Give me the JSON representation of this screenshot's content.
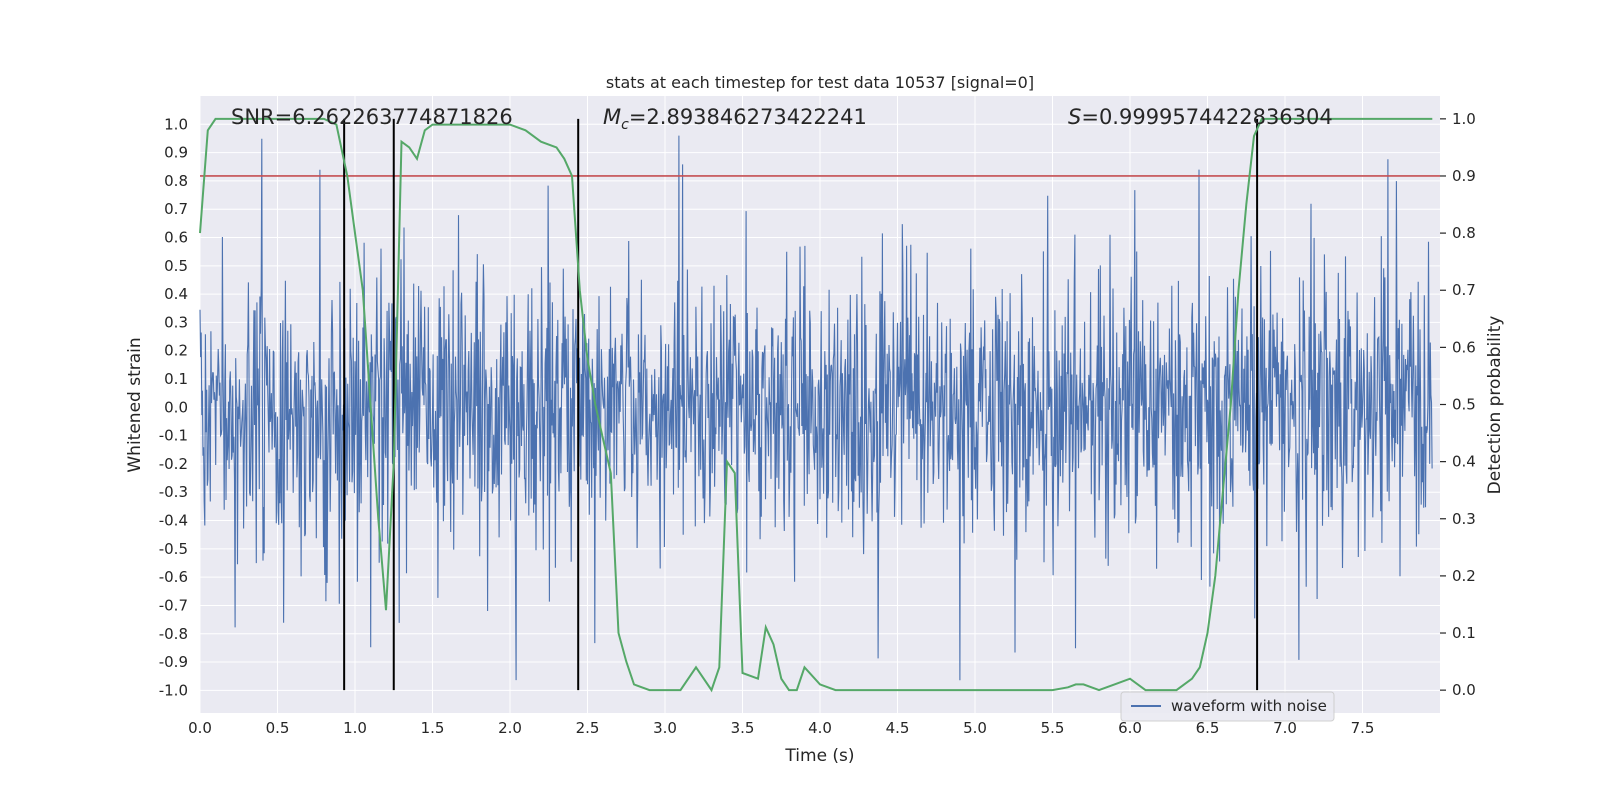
{
  "chart_data": {
    "type": "line",
    "title": "stats at each timestep for test data 10537 [signal=0]",
    "xlabel": "Time (s)",
    "ylabel": "Whitened strain",
    "y2label": "Detection probability",
    "xlim": [
      0,
      8
    ],
    "ylim": [
      -1.08,
      1.1
    ],
    "y2lim": [
      -0.04,
      1.04
    ],
    "xticks": [
      "0.0",
      "0.5",
      "1.0",
      "1.5",
      "2.0",
      "2.5",
      "3.0",
      "3.5",
      "4.0",
      "4.5",
      "5.0",
      "5.5",
      "6.0",
      "6.5",
      "7.0",
      "7.5"
    ],
    "yticks": [
      "-1.0",
      "-0.9",
      "-0.8",
      "-0.7",
      "-0.6",
      "-0.5",
      "-0.4",
      "-0.3",
      "-0.2",
      "-0.1",
      "0.0",
      "0.1",
      "0.2",
      "0.3",
      "0.4",
      "0.5",
      "0.6",
      "0.7",
      "0.8",
      "0.9",
      "1.0"
    ],
    "y2ticks": [
      "0.0",
      "0.1",
      "0.2",
      "0.3",
      "0.4",
      "0.5",
      "0.6",
      "0.7",
      "0.8",
      "0.9",
      "1.0"
    ],
    "annotations": {
      "snr": "SNR=6.262263774871826",
      "mc_sym": "M",
      "mc_sub": "c",
      "mc_val": "=2.893846273422241",
      "s_sym": "S",
      "s_val": "=0.9999574422836304"
    },
    "legend": {
      "label": "waveform with noise",
      "location": "lower-right"
    },
    "threshold": 0.9,
    "vlines": [
      0.93,
      1.25,
      2.44,
      6.82
    ],
    "noise": {
      "name": "waveform with noise",
      "sample_rate": 256,
      "amplitude": 0.42,
      "seed": 10537
    },
    "detection_probability": {
      "x": [
        0.0,
        0.05,
        0.1,
        0.2,
        0.3,
        0.4,
        0.5,
        0.6,
        0.7,
        0.8,
        0.88,
        0.95,
        1.0,
        1.05,
        1.1,
        1.15,
        1.2,
        1.25,
        1.3,
        1.35,
        1.4,
        1.45,
        1.5,
        1.6,
        1.7,
        1.8,
        1.9,
        2.0,
        2.1,
        2.2,
        2.3,
        2.35,
        2.4,
        2.45,
        2.5,
        2.55,
        2.6,
        2.65,
        2.7,
        2.75,
        2.8,
        2.85,
        2.9,
        3.0,
        3.1,
        3.2,
        3.3,
        3.35,
        3.4,
        3.45,
        3.5,
        3.6,
        3.65,
        3.7,
        3.75,
        3.8,
        3.85,
        3.9,
        4.0,
        4.1,
        4.2,
        4.3,
        4.5,
        5.0,
        5.5,
        5.6,
        5.65,
        5.7,
        5.8,
        5.9,
        6.0,
        6.1,
        6.2,
        6.3,
        6.4,
        6.45,
        6.5,
        6.55,
        6.6,
        6.65,
        6.7,
        6.75,
        6.8,
        6.85,
        6.9,
        7.0,
        7.5,
        7.95
      ],
      "y": [
        0.8,
        0.98,
        1.0,
        1.0,
        1.0,
        1.0,
        1.0,
        1.0,
        1.0,
        1.0,
        0.99,
        0.9,
        0.8,
        0.7,
        0.5,
        0.3,
        0.14,
        0.4,
        0.96,
        0.95,
        0.93,
        0.98,
        0.99,
        0.99,
        0.99,
        0.99,
        0.99,
        0.99,
        0.98,
        0.96,
        0.95,
        0.93,
        0.9,
        0.7,
        0.58,
        0.5,
        0.44,
        0.38,
        0.1,
        0.05,
        0.01,
        0.005,
        0.0,
        0.0,
        0.0,
        0.04,
        0.0,
        0.04,
        0.4,
        0.38,
        0.03,
        0.02,
        0.11,
        0.08,
        0.02,
        0.0,
        0.0,
        0.04,
        0.01,
        0.0,
        0.0,
        0.0,
        0.0,
        0.0,
        0.0,
        0.005,
        0.01,
        0.01,
        0.0,
        0.01,
        0.02,
        0.0,
        0.0,
        0.0,
        0.02,
        0.04,
        0.1,
        0.2,
        0.35,
        0.5,
        0.7,
        0.85,
        0.97,
        1.0,
        1.0,
        1.0,
        1.0,
        1.0
      ]
    },
    "colors": {
      "background": "#eaeaf2",
      "grid": "#ffffff",
      "noise": "#4c72b0",
      "probability": "#55a868",
      "threshold": "#c44e52",
      "vline": "#000000",
      "text": "#262626"
    }
  }
}
